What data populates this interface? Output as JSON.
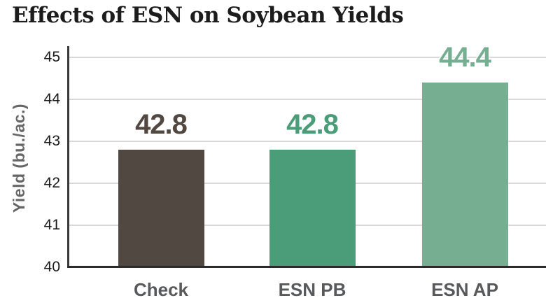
{
  "title": "Effects of ESN on Soybean Yields",
  "chart_data": {
    "type": "bar",
    "title": "Effects of ESN on Soybean Yields",
    "categories": [
      "Check",
      "ESN PB",
      "ESN AP"
    ],
    "values": [
      42.8,
      42.8,
      44.4
    ],
    "value_labels": [
      "42.8",
      "42.8",
      "44.4"
    ],
    "bar_colors": [
      "#514842",
      "#4a9d78",
      "#76ae92"
    ],
    "xlabel": "",
    "ylabel": "Yield (bu./ac.)",
    "ylim": [
      40,
      45
    ],
    "yticks": [
      40,
      41,
      42,
      43,
      44,
      45
    ],
    "grid": true,
    "legend": false
  },
  "colors": {
    "background": "#ffffff",
    "title": "#1c1c1c",
    "axis_line": "#3a3a3a",
    "baseline": "#2b2b2b",
    "gridline": "#d9d9d9",
    "tick_label": "#1a1a1a",
    "axis_title": "#666666",
    "category_label": "#58595b"
  }
}
